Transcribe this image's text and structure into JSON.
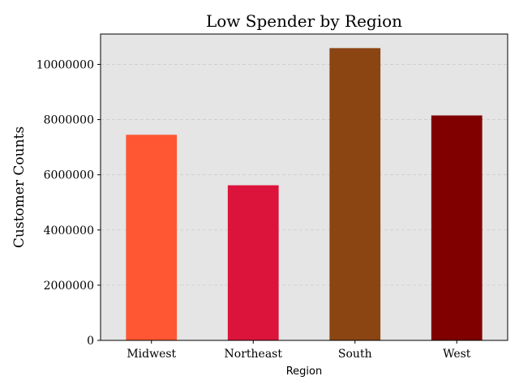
{
  "chart_data": {
    "type": "bar",
    "title": "Low Spender by Region",
    "xlabel": "Region",
    "ylabel": "Customer Counts",
    "categories": [
      "Midwest",
      "Northeast",
      "South",
      "West"
    ],
    "values": [
      7450000,
      5620000,
      10590000,
      8150000
    ],
    "colors": [
      "#FF5733",
      "#DC143C",
      "#8B4513",
      "#800000"
    ],
    "ylim": [
      0,
      11100000
    ],
    "yticks": [
      0,
      2000000,
      4000000,
      6000000,
      8000000,
      10000000
    ],
    "ytick_labels": [
      "0",
      "2000000",
      "4000000",
      "6000000",
      "8000000",
      "10000000"
    ],
    "grid": true,
    "plot_background": "#E5E5E5"
  }
}
